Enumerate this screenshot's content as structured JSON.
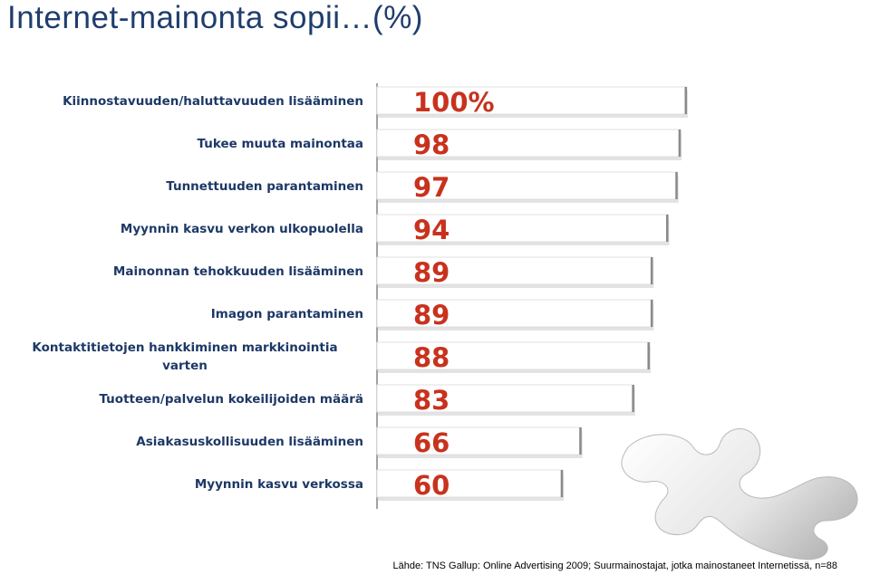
{
  "title": "Internet-mainonta sopii…(%)",
  "source": "Lähde: TNS Gallup: Online Advertising 2009; Suurmainostajat, jotka mainostaneet Internetissä, n=88",
  "colors": {
    "title": "#1f3d6e",
    "category_text": "#1d3866",
    "value_text": "#c8321d",
    "bar_fill": "#ffffff",
    "bar_edge": "#8a8a8a"
  },
  "chart_data": {
    "type": "bar",
    "orientation": "horizontal",
    "categories": [
      "Kiinnostavuuden/haluttavuuden lisääminen",
      "Tukee muuta mainontaa",
      "Tunnettuuden parantaminen",
      "Myynnin kasvu verkon ulkopuolella",
      "Mainonnan tehokkuuden lisääminen",
      "Imagon parantaminen",
      "Kontaktitietojen hankkiminen markkinointia varten",
      "Tuotteen/palvelun kokeilijoiden määrä",
      "Asiakasuskollisuuden lisääminen",
      "Myynnin kasvu verkossa"
    ],
    "values": [
      100,
      98,
      97,
      94,
      89,
      89,
      88,
      83,
      66,
      60
    ],
    "value_labels": [
      "100%",
      "98",
      "97",
      "94",
      "89",
      "89",
      "88",
      "83",
      "66",
      "60"
    ],
    "xlim": [
      0,
      100
    ],
    "grid": false,
    "legend": "none"
  }
}
